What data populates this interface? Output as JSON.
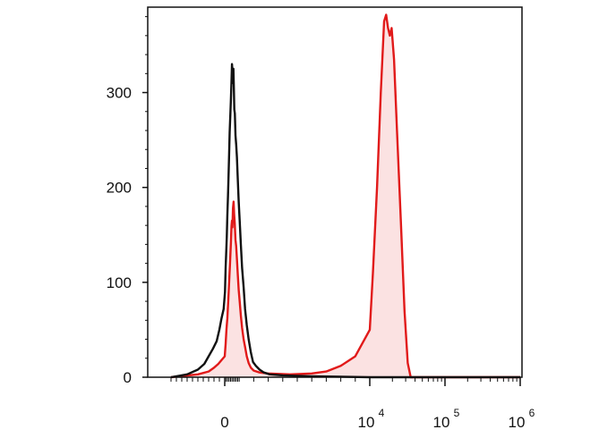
{
  "chart_data": {
    "type": "area",
    "title": "",
    "xlabel": "",
    "ylabel": "",
    "x_scale": "biexponential",
    "ylim": [
      0,
      390
    ],
    "grid": false,
    "legend": "none",
    "y_ticks": [
      {
        "value": 0,
        "label": "0"
      },
      {
        "value": 100,
        "label": "100"
      },
      {
        "value": 200,
        "label": "200"
      },
      {
        "value": 300,
        "label": "300"
      }
    ],
    "x_ticks": [
      {
        "value": 0,
        "base": "0",
        "exp": ""
      },
      {
        "value": 10000,
        "base": "10",
        "exp": "4"
      },
      {
        "value": 100000,
        "base": "10",
        "exp": "5"
      },
      {
        "value": 1000000,
        "base": "10",
        "exp": "6"
      }
    ],
    "series": [
      {
        "color": "#111111",
        "fill": "none",
        "points": [
          [
            -1000,
            0
          ],
          [
            -700,
            3
          ],
          [
            -500,
            8
          ],
          [
            -380,
            14
          ],
          [
            -300,
            22
          ],
          [
            -220,
            30
          ],
          [
            -150,
            38
          ],
          [
            -100,
            50
          ],
          [
            -60,
            62
          ],
          [
            -20,
            72
          ],
          [
            20,
            90
          ],
          [
            60,
            115
          ],
          [
            100,
            130
          ],
          [
            140,
            148
          ],
          [
            180,
            170
          ],
          [
            220,
            190
          ],
          [
            260,
            210
          ],
          [
            300,
            235
          ],
          [
            340,
            258
          ],
          [
            380,
            275
          ],
          [
            420,
            290
          ],
          [
            460,
            310
          ],
          [
            500,
            330
          ],
          [
            540,
            322
          ],
          [
            570,
            310
          ],
          [
            600,
            325
          ],
          [
            630,
            305
          ],
          [
            660,
            282
          ],
          [
            700,
            278
          ],
          [
            740,
            255
          ],
          [
            790,
            245
          ],
          [
            840,
            232
          ],
          [
            900,
            208
          ],
          [
            960,
            185
          ],
          [
            1030,
            165
          ],
          [
            1110,
            140
          ],
          [
            1200,
            115
          ],
          [
            1300,
            95
          ],
          [
            1400,
            72
          ],
          [
            1520,
            55
          ],
          [
            1650,
            40
          ],
          [
            1800,
            26
          ],
          [
            1950,
            16
          ],
          [
            2150,
            12
          ],
          [
            2400,
            8
          ],
          [
            2700,
            5
          ],
          [
            3100,
            3
          ],
          [
            4000,
            2
          ],
          [
            6000,
            1
          ],
          [
            10000,
            0
          ],
          [
            1000000,
            0
          ]
        ]
      },
      {
        "color": "#e11a1a",
        "fill": "#fbe2e2",
        "points": [
          [
            -1000,
            0
          ],
          [
            -500,
            3
          ],
          [
            -300,
            6
          ],
          [
            -200,
            10
          ],
          [
            -120,
            14
          ],
          [
            -60,
            18
          ],
          [
            0,
            22
          ],
          [
            60,
            35
          ],
          [
            120,
            50
          ],
          [
            180,
            62
          ],
          [
            240,
            80
          ],
          [
            300,
            100
          ],
          [
            360,
            118
          ],
          [
            420,
            140
          ],
          [
            470,
            160
          ],
          [
            500,
            165
          ],
          [
            530,
            158
          ],
          [
            570,
            178
          ],
          [
            610,
            185
          ],
          [
            650,
            172
          ],
          [
            690,
            162
          ],
          [
            740,
            145
          ],
          [
            790,
            138
          ],
          [
            840,
            125
          ],
          [
            900,
            108
          ],
          [
            960,
            92
          ],
          [
            1030,
            80
          ],
          [
            1110,
            65
          ],
          [
            1200,
            52
          ],
          [
            1300,
            40
          ],
          [
            1400,
            32
          ],
          [
            1520,
            22
          ],
          [
            1650,
            15
          ],
          [
            1800,
            10
          ],
          [
            2000,
            7
          ],
          [
            2400,
            5
          ],
          [
            3000,
            4
          ],
          [
            4500,
            3
          ],
          [
            6000,
            4
          ],
          [
            7000,
            6
          ],
          [
            8000,
            12
          ],
          [
            9000,
            22
          ],
          [
            10000,
            50
          ],
          [
            11000,
            110
          ],
          [
            12500,
            200
          ],
          [
            14000,
            300
          ],
          [
            15500,
            375
          ],
          [
            16500,
            382
          ],
          [
            17500,
            368
          ],
          [
            18500,
            360
          ],
          [
            19500,
            368
          ],
          [
            21000,
            335
          ],
          [
            23000,
            260
          ],
          [
            26000,
            160
          ],
          [
            29000,
            70
          ],
          [
            32000,
            15
          ],
          [
            35000,
            0
          ],
          [
            1000000,
            0
          ]
        ]
      }
    ]
  }
}
